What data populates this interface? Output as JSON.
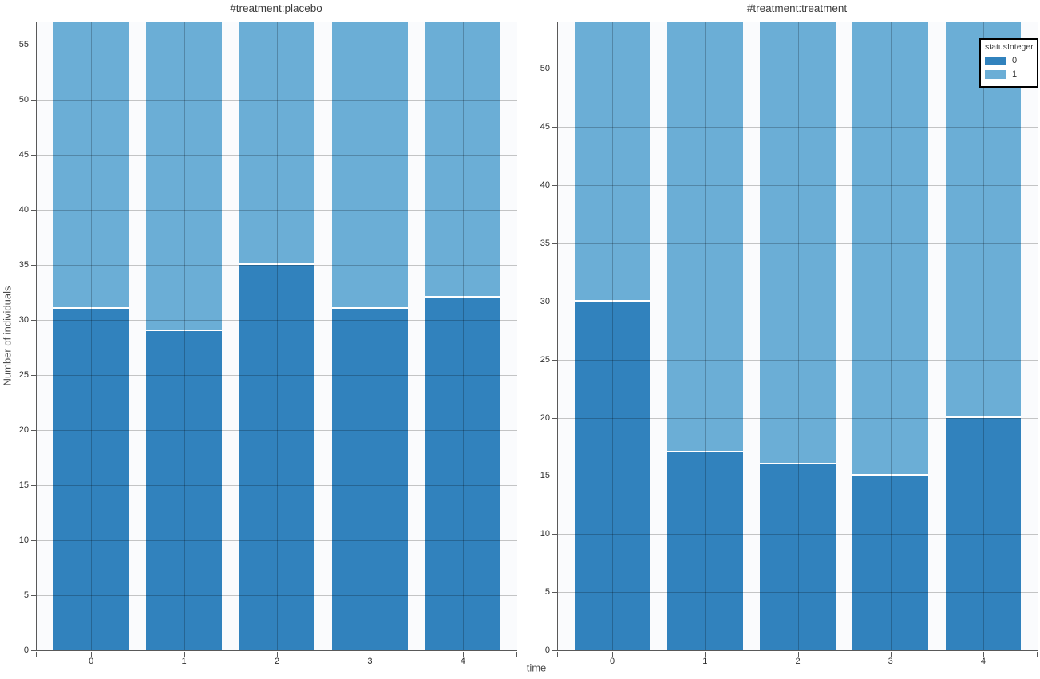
{
  "chart_data": {
    "type": "bar",
    "stacked": true,
    "xlabel": "time",
    "ylabel": "Number of individuals",
    "grid": true,
    "legend": {
      "title": "statusInteger",
      "position": "top-right",
      "entries": [
        {
          "label": "0",
          "color": "#3182bd"
        },
        {
          "label": "1",
          "color": "#6baed6"
        }
      ]
    },
    "facets": [
      {
        "title": "#treatment:placebo",
        "categories": [
          "0",
          "1",
          "2",
          "3",
          "4"
        ],
        "y_max": 57,
        "y_ticks": [
          0,
          5,
          10,
          15,
          20,
          25,
          30,
          35,
          40,
          45,
          50,
          55
        ],
        "series": [
          {
            "name": "0",
            "color": "#3182bd",
            "values": [
              31,
              29,
              35,
              31,
              32
            ]
          },
          {
            "name": "1",
            "color": "#6baed6",
            "values": [
              26,
              28,
              22,
              26,
              25
            ]
          }
        ],
        "totals": [
          57,
          57,
          57,
          57,
          57
        ]
      },
      {
        "title": "#treatment:treatment",
        "categories": [
          "0",
          "1",
          "2",
          "3",
          "4"
        ],
        "y_max": 54,
        "y_ticks": [
          0,
          5,
          10,
          15,
          20,
          25,
          30,
          35,
          40,
          45,
          50
        ],
        "series": [
          {
            "name": "0",
            "color": "#3182bd",
            "values": [
              30,
              17,
              16,
              15,
              20
            ]
          },
          {
            "name": "1",
            "color": "#6baed6",
            "values": [
              24,
              37,
              38,
              39,
              34
            ]
          }
        ],
        "totals": [
          54,
          54,
          54,
          54,
          54
        ]
      }
    ],
    "colors": {
      "status_0": "#3182bd",
      "status_1": "#6baed6",
      "plot_background": "#fafbfd",
      "axis": "#595959",
      "gridline": "rgba(0,0,0,0.22)"
    }
  }
}
